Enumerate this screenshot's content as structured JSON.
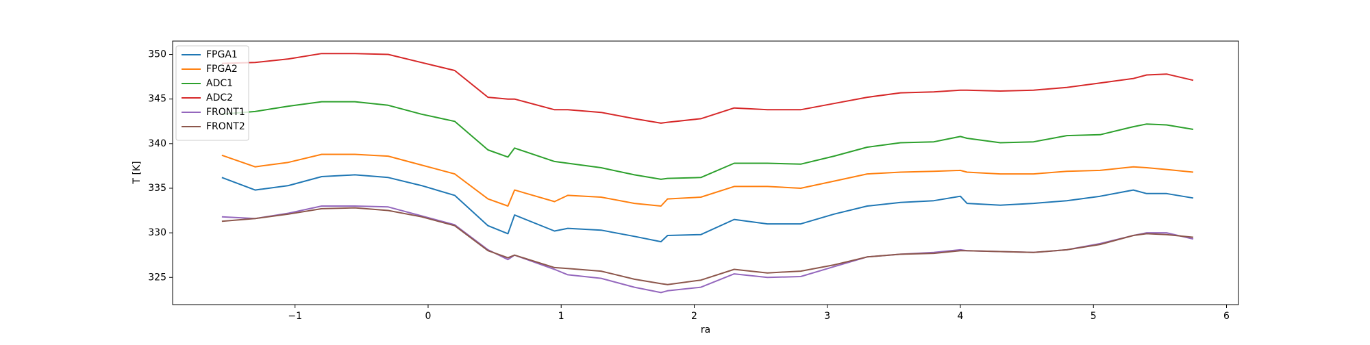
{
  "chart_data": {
    "type": "line",
    "xlabel": "ra",
    "ylabel": "T [K]",
    "x": [
      -1.55,
      -1.3,
      -1.05,
      -0.8,
      -0.55,
      -0.3,
      -0.05,
      0.2,
      0.45,
      0.6,
      0.65,
      0.95,
      1.05,
      1.3,
      1.55,
      1.75,
      1.8,
      2.05,
      2.3,
      2.55,
      2.8,
      3.05,
      3.3,
      3.55,
      3.8,
      4.0,
      4.05,
      4.3,
      4.55,
      4.8,
      5.05,
      5.3,
      5.4,
      5.55,
      5.75
    ],
    "series": [
      {
        "name": "FPGA1",
        "color": "#1f77b4",
        "values": [
          336.2,
          334.8,
          335.3,
          336.3,
          336.5,
          336.2,
          335.3,
          334.2,
          330.8,
          329.9,
          332,
          330.2,
          330.5,
          330.3,
          329.6,
          329,
          329.7,
          329.8,
          331.5,
          331,
          331,
          332.1,
          333,
          333.4,
          333.6,
          334.1,
          333.3,
          333.1,
          333.3,
          333.6,
          334.1,
          334.8,
          334.4,
          334.4,
          333.9
        ]
      },
      {
        "name": "FPGA2",
        "color": "#ff7f0e",
        "values": [
          338.7,
          337.4,
          337.9,
          338.8,
          338.8,
          338.6,
          337.6,
          336.6,
          333.8,
          333,
          334.8,
          333.5,
          334.2,
          334,
          333.3,
          333,
          333.8,
          334,
          335.2,
          335.2,
          335,
          335.8,
          336.6,
          336.8,
          336.9,
          337,
          336.8,
          336.6,
          336.6,
          336.9,
          337,
          337.4,
          337.3,
          337.1,
          336.8
        ]
      },
      {
        "name": "ADC1",
        "color": "#2ca02c",
        "values": [
          343.3,
          343.6,
          344.2,
          344.7,
          344.7,
          344.3,
          343.3,
          342.5,
          339.3,
          338.5,
          339.5,
          338,
          337.8,
          337.3,
          336.5,
          336,
          336.1,
          336.2,
          337.8,
          337.8,
          337.7,
          338.6,
          339.6,
          340.1,
          340.2,
          340.8,
          340.6,
          340.1,
          340.2,
          340.9,
          341,
          341.9,
          342.2,
          342.1,
          341.6
        ]
      },
      {
        "name": "ADC2",
        "color": "#d62728",
        "values": [
          349,
          349.1,
          349.5,
          350.1,
          350.1,
          350,
          349.1,
          348.2,
          345.2,
          345,
          345,
          343.8,
          343.8,
          343.5,
          342.8,
          342.3,
          342.4,
          342.8,
          344,
          343.8,
          343.8,
          344.5,
          345.2,
          345.7,
          345.8,
          346,
          346,
          345.9,
          346,
          346.3,
          346.8,
          347.3,
          347.7,
          347.8,
          347.1
        ]
      },
      {
        "name": "FRONT1",
        "color": "#9467bd",
        "values": [
          331.8,
          331.6,
          332.2,
          333,
          333,
          332.9,
          331.9,
          330.9,
          328.1,
          327,
          327.5,
          325.9,
          325.3,
          324.9,
          323.9,
          323.3,
          323.5,
          323.9,
          325.4,
          325,
          325.1,
          326.2,
          327.3,
          327.6,
          327.8,
          328.1,
          328,
          327.9,
          327.8,
          328.1,
          328.8,
          329.7,
          330,
          330,
          329.3
        ]
      },
      {
        "name": "FRONT2",
        "color": "#8c564b",
        "values": [
          331.3,
          331.6,
          332.1,
          332.7,
          332.8,
          332.5,
          331.8,
          330.8,
          328,
          327.2,
          327.5,
          326.1,
          326,
          325.7,
          324.8,
          324.3,
          324.2,
          324.7,
          325.9,
          325.5,
          325.7,
          326.4,
          327.3,
          327.6,
          327.7,
          328,
          328,
          327.9,
          327.8,
          328.1,
          328.7,
          329.7,
          329.9,
          329.8,
          329.5
        ]
      }
    ],
    "xlim": [
      -1.92,
      6.09
    ],
    "ylim": [
      321.95,
      351.5
    ],
    "xticks": [
      {
        "value": -1,
        "label": "−1"
      },
      0,
      1,
      2,
      3,
      4,
      5,
      6
    ],
    "yticks": [
      325,
      330,
      335,
      340,
      345,
      350
    ],
    "legend": "upper left"
  }
}
